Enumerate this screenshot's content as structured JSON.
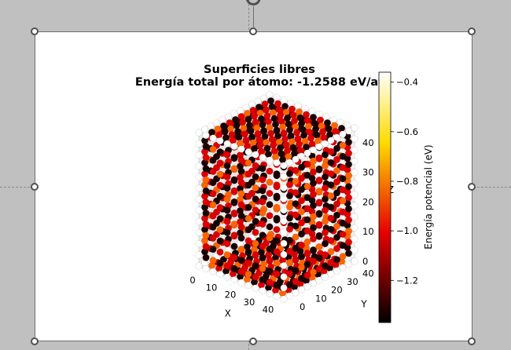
{
  "chart_data": {
    "type": "scatter3d",
    "title": "Superficies libres",
    "subtitle": "Energía total por átomo: -1.2588 eV/at",
    "xlabel": "X",
    "ylabel": "Y",
    "zlabel": "Z",
    "x_ticks": [
      "0",
      "10",
      "20",
      "30",
      "40"
    ],
    "y_ticks": [
      "0",
      "10",
      "20",
      "30",
      "40"
    ],
    "z_ticks": [
      "0",
      "10",
      "20",
      "30",
      "40"
    ],
    "xlim": [
      0,
      45
    ],
    "ylim": [
      0,
      45
    ],
    "zlim": [
      0,
      45
    ],
    "lattice_per_axis": 13,
    "surface_energy_eV": -0.4,
    "bulk_energy_eV": -1.35,
    "colorbar": {
      "label": "Energía potencial (eV)",
      "ticks": [
        "−0.4",
        "−0.6",
        "−0.8",
        "−1.0",
        "−1.2"
      ],
      "tick_values": [
        -0.4,
        -0.6,
        -0.8,
        -1.0,
        -1.2
      ],
      "range": [
        -1.37,
        -0.36
      ],
      "colormap": "hot"
    },
    "grid": true
  },
  "colors": {
    "background": "#c0c0c0",
    "canvas": "#ffffff",
    "selection_border": "#6f6f6f"
  }
}
